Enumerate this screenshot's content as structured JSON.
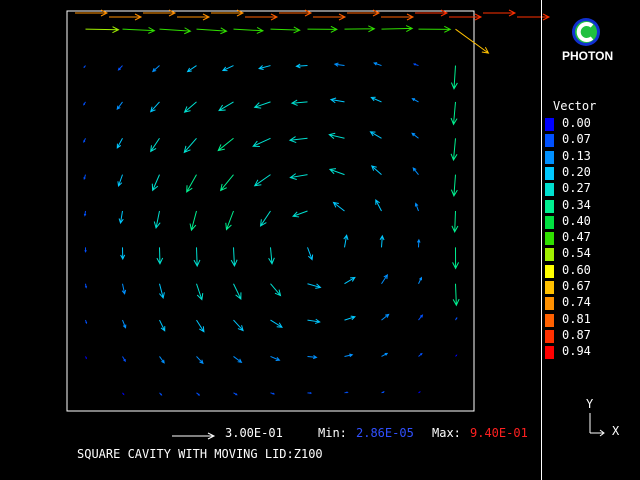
{
  "logo": {
    "text": "PHOTON"
  },
  "legend": {
    "title": "Vector",
    "entries": [
      {
        "value": "0.00",
        "color": "#0000ff"
      },
      {
        "value": "0.07",
        "color": "#0050ff"
      },
      {
        "value": "0.13",
        "color": "#0090ff"
      },
      {
        "value": "0.20",
        "color": "#00c8ff"
      },
      {
        "value": "0.27",
        "color": "#00e0d0"
      },
      {
        "value": "0.34",
        "color": "#00f090"
      },
      {
        "value": "0.40",
        "color": "#00e040"
      },
      {
        "value": "0.47",
        "color": "#30e000"
      },
      {
        "value": "0.54",
        "color": "#a0f000"
      },
      {
        "value": "0.60",
        "color": "#ffff00"
      },
      {
        "value": "0.67",
        "color": "#ffc000"
      },
      {
        "value": "0.74",
        "color": "#ff9000"
      },
      {
        "value": "0.81",
        "color": "#ff6000"
      },
      {
        "value": "0.87",
        "color": "#ff3000"
      },
      {
        "value": "0.94",
        "color": "#ff0000"
      }
    ]
  },
  "footer": {
    "scale_value": "3.00E-01",
    "min_label": "Min:",
    "min_value": "2.86E-05",
    "max_label": "Max:",
    "max_value": "9.40E-01",
    "title": "SQUARE CAVITY WITH MOVING LID:Z100"
  },
  "axes": {
    "y": "Y",
    "x": "X"
  },
  "colors": {
    "min_value": "#3050ff",
    "max_value": "#ff2020"
  }
}
